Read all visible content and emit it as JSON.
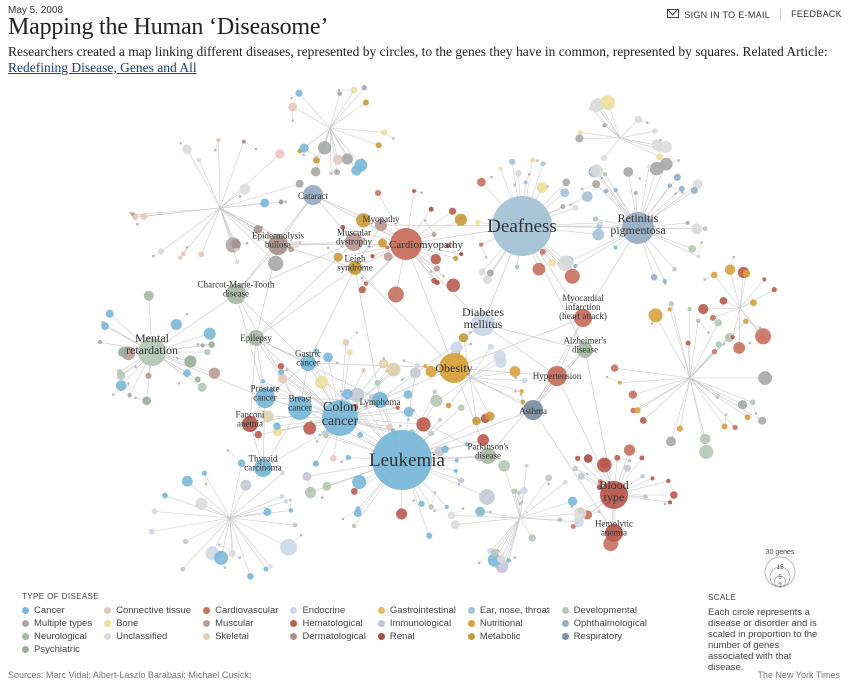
{
  "header": {
    "date": "May 5, 2008",
    "signin_label": "SIGN IN TO E-MAIL",
    "feedback_label": "FEEDBACK",
    "title": "Mapping the Human ‘Diseasome’",
    "subtitle": "Researchers created a map linking different diseases, represented by circles, to the genes they have in common, represented by squares. Related Article:",
    "article_link": "Redefining Disease, Genes and All"
  },
  "colors": {
    "cancer": "#7ab8d8",
    "bone": "#ecdf9c",
    "skeletal": "#ddd2ae",
    "connective": "#e7c6be",
    "muscular": "#bd9a93",
    "dermatological": "#a8928c",
    "cardiovascular": "#c7705f",
    "hematological": "#bb5b4f",
    "renal": "#a84c44",
    "endocrine": "#ccd7e7",
    "immunological": "#c2c8d3",
    "gastrointestinal": "#e9bb63",
    "nutritional": "#d9a23c",
    "metabolic": "#c89a3a",
    "ent": "#a4c2d6",
    "ophthalmological": "#98adc4",
    "respiratory": "#7d8fa2",
    "developmental": "#b5c8b6",
    "neurological": "#a8baa5",
    "psychiatric": "#98ac98",
    "multiple": "#a7a7a7",
    "unclassified": "#dcdcdc",
    "edge": "#cccccc"
  },
  "diseases": [
    {
      "name": "Deafness",
      "type": "ent",
      "size": 30
    },
    {
      "name": "Leukemia",
      "type": "cancer",
      "size": 30
    },
    {
      "name": "Colon cancer",
      "type": "cancer",
      "size": 18
    },
    {
      "name": "Cardiomyopathy",
      "type": "cardiovascular",
      "size": 16
    },
    {
      "name": "Retinitis pigmentosa",
      "type": "ophthalmological",
      "size": 16
    },
    {
      "name": "Obesity",
      "type": "nutritional",
      "size": 15
    },
    {
      "name": "Diabetes mellitus",
      "type": "endocrine",
      "size": 12
    },
    {
      "name": "Mental retardation",
      "type": "developmental",
      "size": 14
    },
    {
      "name": "Blood type",
      "type": "hematological",
      "size": 14
    },
    {
      "name": "Asthma",
      "type": "respiratory",
      "size": 10
    },
    {
      "name": "Cataract",
      "type": "ophthalmological",
      "size": 10
    },
    {
      "name": "Myopathy",
      "type": "muscular",
      "size": 6
    },
    {
      "name": "Epidermolysis bullosa",
      "type": "dermatological",
      "size": 10
    },
    {
      "name": "Muscular dystrophy",
      "type": "muscular",
      "size": 9
    },
    {
      "name": "Leigh syndrome",
      "type": "metabolic",
      "size": 7
    },
    {
      "name": "Charcot-Marie-Tooth disease",
      "type": "neurological",
      "size": 10
    },
    {
      "name": "Epilepsy",
      "type": "neurological",
      "size": 8
    },
    {
      "name": "Gastric cancer",
      "type": "cancer",
      "size": 8
    },
    {
      "name": "Prostate cancer",
      "type": "cancer",
      "size": 10
    },
    {
      "name": "Breast cancer",
      "type": "cancer",
      "size": 12
    },
    {
      "name": "Lymphoma",
      "type": "cancer",
      "size": 8
    },
    {
      "name": "Fanconi anemia",
      "type": "hematological",
      "size": 8
    },
    {
      "name": "Thyroid carcinoma",
      "type": "cancer",
      "size": 9
    },
    {
      "name": "Parkinson's disease",
      "type": "neurological",
      "size": 8
    },
    {
      "name": "Hypertension",
      "type": "cardiovascular",
      "size": 10
    },
    {
      "name": "Myocardial infarction (heart attack)",
      "type": "cardiovascular",
      "size": 9
    },
    {
      "name": "Alzheimer's disease",
      "type": "neurological",
      "size": 8
    },
    {
      "name": "Hemolytic anemia",
      "type": "hematological",
      "size": 9
    }
  ],
  "legend": {
    "title": "TYPE OF DISEASE",
    "items": [
      {
        "label": "Cancer",
        "type": "cancer"
      },
      {
        "label": "Connective tissue",
        "type": "connective"
      },
      {
        "label": "Cardiovascular",
        "type": "cardiovascular"
      },
      {
        "label": "Endocrine",
        "type": "endocrine"
      },
      {
        "label": "Gastrointestinal",
        "type": "gastrointestinal"
      },
      {
        "label": "Ear, nose, throat",
        "type": "ent"
      },
      {
        "label": "Developmental",
        "type": "developmental"
      },
      {
        "label": "Multiple types",
        "type": "multiple"
      },
      {
        "label": "Bone",
        "type": "bone"
      },
      {
        "label": "Muscular",
        "type": "muscular"
      },
      {
        "label": "Hematological",
        "type": "hematological"
      },
      {
        "label": "Immunological",
        "type": "immunological"
      },
      {
        "label": "Nutritional",
        "type": "nutritional"
      },
      {
        "label": "Ophthalmological",
        "type": "ophthalmological"
      },
      {
        "label": "Neurological",
        "type": "neurological"
      },
      {
        "label": "Unclassified",
        "type": "unclassified"
      },
      {
        "label": "Skeletal",
        "type": "skeletal"
      },
      {
        "label": "Dermatological",
        "type": "dermatological"
      },
      {
        "label": "Renal",
        "type": "renal"
      },
      {
        "label": "Metabolic",
        "type": "metabolic"
      },
      {
        "label": "Respiratory",
        "type": "respiratory"
      },
      {
        "label": "Psychiatric",
        "type": "psychiatric"
      }
    ]
  },
  "scale": {
    "title": "SCALE",
    "text": "Each circle represents a disease or disorder and is scaled in proportion to the number of genes associated with that disease.",
    "labels": [
      "30 genes",
      "15",
      "5",
      "1"
    ]
  },
  "footer": {
    "sources": "Sources: Marc Vidal; Albert-Laszlo Barabasi; Michael Cusick;",
    "publisher": "The New York Times"
  }
}
